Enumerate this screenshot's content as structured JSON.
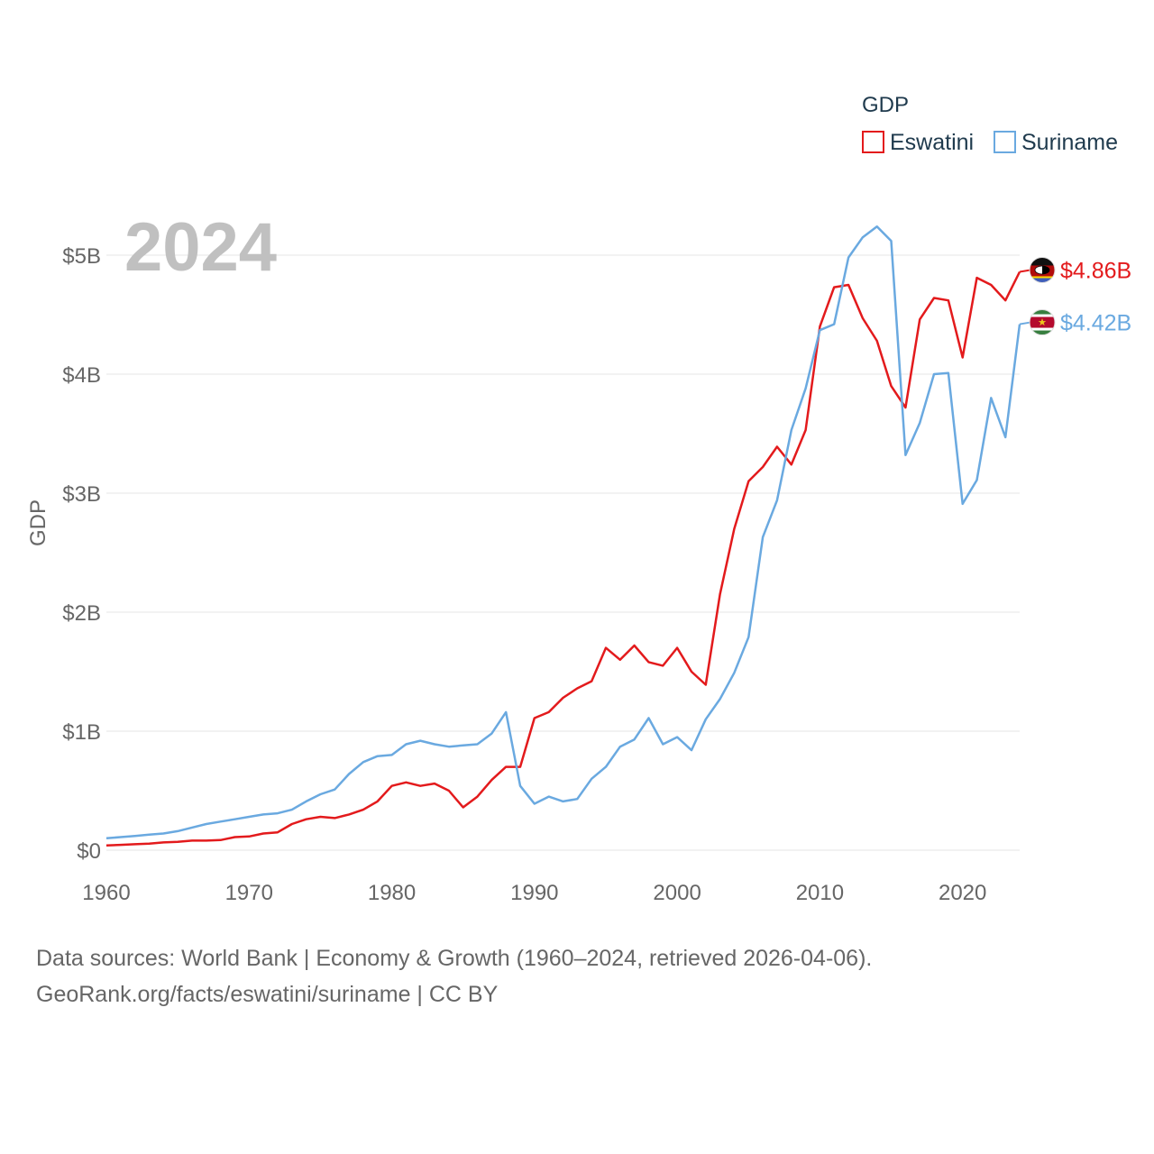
{
  "colors": {
    "eswatini": "#e31a1c",
    "suriname": "#6aa9e0",
    "axis_text": "#666666",
    "legend_text": "#1f3a4d",
    "grid": "#e6e6e6",
    "year_watermark": "#c0c0c0"
  },
  "legend": {
    "title": "GDP",
    "items": [
      {
        "label": "Eswatini"
      },
      {
        "label": "Suriname"
      }
    ]
  },
  "end_labels": {
    "eswatini": "$4.86B",
    "suriname": "$4.42B"
  },
  "icons": {
    "eswatini": "eswatini-flag-icon",
    "suriname": "suriname-flag-icon"
  },
  "source": {
    "line1": "Data sources: World Bank | Economy & Growth (1960–2024, retrieved 2026-04-06).",
    "line2": "GeoRank.org/facts/eswatini/suriname | CC BY"
  },
  "chart_data": {
    "type": "line",
    "title": "",
    "year_label": "2024",
    "xlabel": "",
    "ylabel": "GDP",
    "xlim": [
      1960,
      2024
    ],
    "ylim": [
      0,
      5.5
    ],
    "grid": true,
    "legend_position": "top-right",
    "x_ticks": [
      1960,
      1970,
      1980,
      1990,
      2000,
      2010,
      2020
    ],
    "x_tick_labels": [
      "1960",
      "1970",
      "1980",
      "1990",
      "2000",
      "2010",
      "2020"
    ],
    "y_ticks": [
      0,
      1,
      2,
      3,
      4,
      5
    ],
    "y_tick_labels": [
      "$0",
      "$1B",
      "$2B",
      "$3B",
      "$4B",
      "$5B"
    ],
    "x": [
      1960,
      1961,
      1962,
      1963,
      1964,
      1965,
      1966,
      1967,
      1968,
      1969,
      1970,
      1971,
      1972,
      1973,
      1974,
      1975,
      1976,
      1977,
      1978,
      1979,
      1980,
      1981,
      1982,
      1983,
      1984,
      1985,
      1986,
      1987,
      1988,
      1989,
      1990,
      1991,
      1992,
      1993,
      1994,
      1995,
      1996,
      1997,
      1998,
      1999,
      2000,
      2001,
      2002,
      2003,
      2004,
      2005,
      2006,
      2007,
      2008,
      2009,
      2010,
      2011,
      2012,
      2013,
      2014,
      2015,
      2016,
      2017,
      2018,
      2019,
      2020,
      2021,
      2022,
      2023,
      2024
    ],
    "series": [
      {
        "name": "Eswatini",
        "values": [
          0.04,
          0.045,
          0.05,
          0.055,
          0.065,
          0.07,
          0.08,
          0.08,
          0.085,
          0.11,
          0.115,
          0.14,
          0.15,
          0.22,
          0.26,
          0.28,
          0.27,
          0.3,
          0.34,
          0.41,
          0.54,
          0.57,
          0.54,
          0.56,
          0.5,
          0.36,
          0.45,
          0.59,
          0.7,
          0.7,
          1.11,
          1.16,
          1.28,
          1.36,
          1.42,
          1.7,
          1.6,
          1.72,
          1.58,
          1.55,
          1.7,
          1.5,
          1.39,
          2.15,
          2.7,
          3.1,
          3.22,
          3.39,
          3.24,
          3.53,
          4.4,
          4.73,
          4.75,
          4.47,
          4.28,
          3.9,
          3.72,
          4.46,
          4.64,
          4.62,
          4.14,
          4.81,
          4.75,
          4.62,
          4.86
        ]
      },
      {
        "name": "Suriname",
        "values": [
          0.1,
          0.11,
          0.12,
          0.13,
          0.14,
          0.16,
          0.19,
          0.22,
          0.24,
          0.26,
          0.28,
          0.3,
          0.31,
          0.34,
          0.41,
          0.47,
          0.51,
          0.64,
          0.74,
          0.79,
          0.8,
          0.89,
          0.92,
          0.89,
          0.87,
          0.88,
          0.89,
          0.98,
          1.16,
          0.54,
          0.39,
          0.45,
          0.41,
          0.43,
          0.6,
          0.7,
          0.87,
          0.93,
          1.11,
          0.89,
          0.95,
          0.84,
          1.1,
          1.27,
          1.49,
          1.79,
          2.63,
          2.94,
          3.53,
          3.88,
          4.37,
          4.42,
          4.98,
          5.15,
          5.24,
          5.12,
          3.32,
          3.59,
          4.0,
          4.01,
          2.91,
          3.11,
          3.8,
          3.47,
          4.42
        ]
      }
    ]
  }
}
